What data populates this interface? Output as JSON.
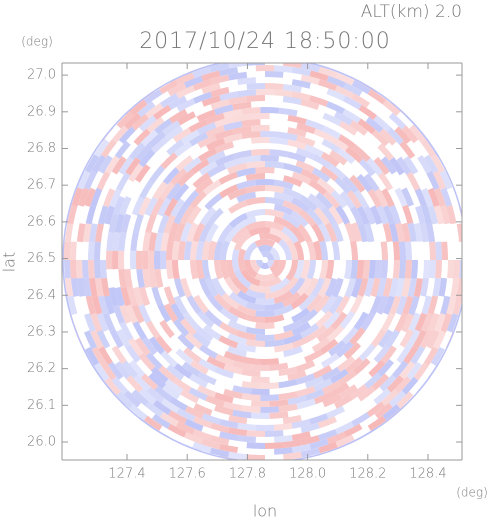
{
  "chart_data": {
    "type": "radar-ppi",
    "title": "2017/10/24 18:50:00",
    "subtitle": "ALT(km) 2.0",
    "x_label": "lon",
    "x_unit": "(deg)",
    "y_label": "lat",
    "y_unit": "(deg)",
    "xlim": [
      127.184,
      128.513
    ],
    "ylim": [
      25.951,
      27.033
    ],
    "xticks": [
      127.4,
      127.6,
      127.8,
      {
        "value": 128.0,
        "label": "128.0"
      },
      128.2,
      128.4
    ],
    "yticks": [
      {
        "value": 26.0,
        "label": "26.0"
      },
      26.1,
      26.2,
      26.3,
      26.4,
      26.5,
      26.6,
      26.7,
      26.8,
      26.9,
      {
        "value": 27.0,
        "label": "27.0"
      }
    ],
    "colors": [
      "#f6b4b4",
      "#bcc2f6"
    ]
  }
}
